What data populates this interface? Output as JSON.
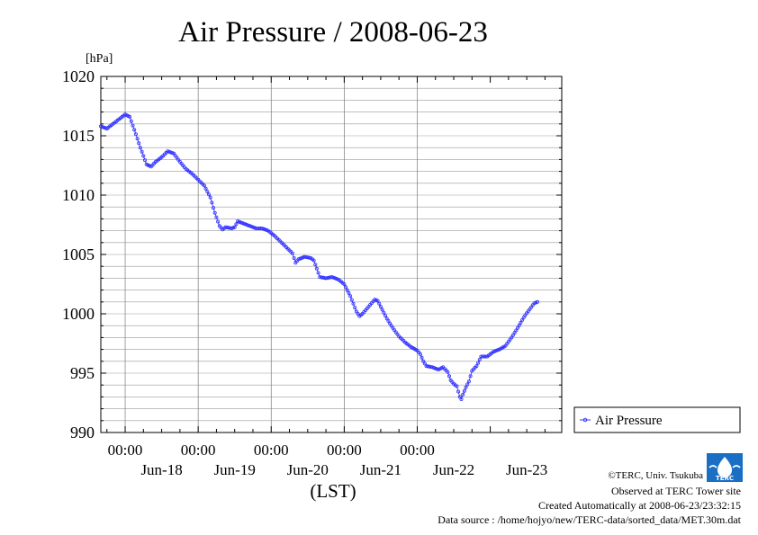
{
  "chart_data": {
    "type": "line",
    "title": "Air Pressure / 2008-06-23",
    "unit_label": "[hPa]",
    "xlabel": "(LST)",
    "ylabel": "",
    "ylim": [
      990,
      1020
    ],
    "yticks": [
      "990",
      "995",
      "1000",
      "1005",
      "1010",
      "1015",
      "1020"
    ],
    "xlim": [
      "2008-06-17 16:00",
      "2008-06-23 23:30"
    ],
    "xtick_time_label": "00:00",
    "xtick_times": [
      "2008-06-18 00:00",
      "2008-06-19 00:00",
      "2008-06-20 00:00",
      "2008-06-21 00:00",
      "2008-06-22 00:00"
    ],
    "day_labels": [
      "Jun-18",
      "Jun-19",
      "Jun-20",
      "Jun-21",
      "Jun-22",
      "Jun-23"
    ],
    "day_label_times": [
      "2008-06-18 12:00",
      "2008-06-19 12:00",
      "2008-06-20 12:00",
      "2008-06-21 12:00",
      "2008-06-22 12:00",
      "2008-06-23 12:00"
    ],
    "grid": true,
    "legend_position": "right",
    "series": [
      {
        "name": "Air Pressure",
        "color": "#3333ff",
        "marker": "open-circle",
        "sample_interval": "30 min",
        "points": [
          [
            "2008-06-17 16:00",
            1015.8
          ],
          [
            "2008-06-17 18:00",
            1015.6
          ],
          [
            "2008-06-17 20:00",
            1016.0
          ],
          [
            "2008-06-17 22:00",
            1016.4
          ],
          [
            "2008-06-18 00:00",
            1016.8
          ],
          [
            "2008-06-18 01:30",
            1016.6
          ],
          [
            "2008-06-18 03:00",
            1015.5
          ],
          [
            "2008-06-18 05:00",
            1014.0
          ],
          [
            "2008-06-18 07:00",
            1012.6
          ],
          [
            "2008-06-18 08:30",
            1012.4
          ],
          [
            "2008-06-18 10:00",
            1012.8
          ],
          [
            "2008-06-18 12:00",
            1013.2
          ],
          [
            "2008-06-18 14:00",
            1013.7
          ],
          [
            "2008-06-18 16:00",
            1013.5
          ],
          [
            "2008-06-18 18:00",
            1012.8
          ],
          [
            "2008-06-18 20:00",
            1012.2
          ],
          [
            "2008-06-18 22:00",
            1011.8
          ],
          [
            "2008-06-19 00:00",
            1011.3
          ],
          [
            "2008-06-19 02:00",
            1010.8
          ],
          [
            "2008-06-19 04:00",
            1009.8
          ],
          [
            "2008-06-19 05:30",
            1008.5
          ],
          [
            "2008-06-19 07:00",
            1007.4
          ],
          [
            "2008-06-19 08:00",
            1007.1
          ],
          [
            "2008-06-19 09:00",
            1007.3
          ],
          [
            "2008-06-19 11:00",
            1007.2
          ],
          [
            "2008-06-19 12:00",
            1007.3
          ],
          [
            "2008-06-19 13:00",
            1007.8
          ],
          [
            "2008-06-19 15:00",
            1007.6
          ],
          [
            "2008-06-19 17:00",
            1007.4
          ],
          [
            "2008-06-19 19:00",
            1007.2
          ],
          [
            "2008-06-19 21:00",
            1007.2
          ],
          [
            "2008-06-19 23:00",
            1007.0
          ],
          [
            "2008-06-20 01:00",
            1006.6
          ],
          [
            "2008-06-20 03:00",
            1006.1
          ],
          [
            "2008-06-20 05:00",
            1005.6
          ],
          [
            "2008-06-20 07:00",
            1005.1
          ],
          [
            "2008-06-20 08:00",
            1004.3
          ],
          [
            "2008-06-20 09:00",
            1004.6
          ],
          [
            "2008-06-20 11:00",
            1004.8
          ],
          [
            "2008-06-20 13:00",
            1004.7
          ],
          [
            "2008-06-20 14:00",
            1004.5
          ],
          [
            "2008-06-20 15:00",
            1003.8
          ],
          [
            "2008-06-20 16:00",
            1003.1
          ],
          [
            "2008-06-20 18:00",
            1003.0
          ],
          [
            "2008-06-20 20:00",
            1003.1
          ],
          [
            "2008-06-20 22:00",
            1002.9
          ],
          [
            "2008-06-21 00:00",
            1002.5
          ],
          [
            "2008-06-21 02:00",
            1001.5
          ],
          [
            "2008-06-21 04:00",
            1000.2
          ],
          [
            "2008-06-21 05:00",
            999.8
          ],
          [
            "2008-06-21 06:00",
            1000.0
          ],
          [
            "2008-06-21 08:00",
            1000.6
          ],
          [
            "2008-06-21 10:00",
            1001.2
          ],
          [
            "2008-06-21 11:00",
            1001.1
          ],
          [
            "2008-06-21 12:00",
            1000.6
          ],
          [
            "2008-06-21 14:00",
            999.6
          ],
          [
            "2008-06-21 16:00",
            998.8
          ],
          [
            "2008-06-21 18:00",
            998.1
          ],
          [
            "2008-06-21 20:00",
            997.6
          ],
          [
            "2008-06-21 22:00",
            997.2
          ],
          [
            "2008-06-22 00:00",
            996.9
          ],
          [
            "2008-06-22 01:00",
            996.6
          ],
          [
            "2008-06-22 02:00",
            996.0
          ],
          [
            "2008-06-22 03:00",
            995.6
          ],
          [
            "2008-06-22 05:00",
            995.5
          ],
          [
            "2008-06-22 07:00",
            995.3
          ],
          [
            "2008-06-22 08:30",
            995.5
          ],
          [
            "2008-06-22 10:00",
            995.1
          ],
          [
            "2008-06-22 11:00",
            994.4
          ],
          [
            "2008-06-22 12:00",
            994.1
          ],
          [
            "2008-06-22 13:00",
            993.9
          ],
          [
            "2008-06-22 14:00",
            993.0
          ],
          [
            "2008-06-22 14:30",
            992.8
          ],
          [
            "2008-06-22 15:00",
            993.2
          ],
          [
            "2008-06-22 16:00",
            993.8
          ],
          [
            "2008-06-22 17:00",
            994.3
          ],
          [
            "2008-06-22 18:00",
            995.2
          ],
          [
            "2008-06-22 19:30",
            995.6
          ],
          [
            "2008-06-22 21:00",
            996.4
          ],
          [
            "2008-06-22 23:00",
            996.4
          ],
          [
            "2008-06-23 01:00",
            996.8
          ],
          [
            "2008-06-23 03:00",
            997.0
          ],
          [
            "2008-06-23 05:00",
            997.3
          ],
          [
            "2008-06-23 07:00",
            998.0
          ],
          [
            "2008-06-23 09:00",
            998.8
          ],
          [
            "2008-06-23 11:00",
            999.7
          ],
          [
            "2008-06-23 13:00",
            1000.4
          ],
          [
            "2008-06-23 14:30",
            1000.9
          ],
          [
            "2008-06-23 15:30",
            1001.0
          ]
        ]
      }
    ]
  },
  "footer": {
    "copyright": "©TERC, Univ. Tsukuba",
    "observed": "Observed at TERC Tower site",
    "created": "Created Automatically at 2008-06-23/23:32:15",
    "source": "Data source : /home/hojyo/new/TERC-data/sorted_data/MET.30m.dat"
  },
  "logo": {
    "text": "TERC",
    "color": "#1a6fc4"
  }
}
